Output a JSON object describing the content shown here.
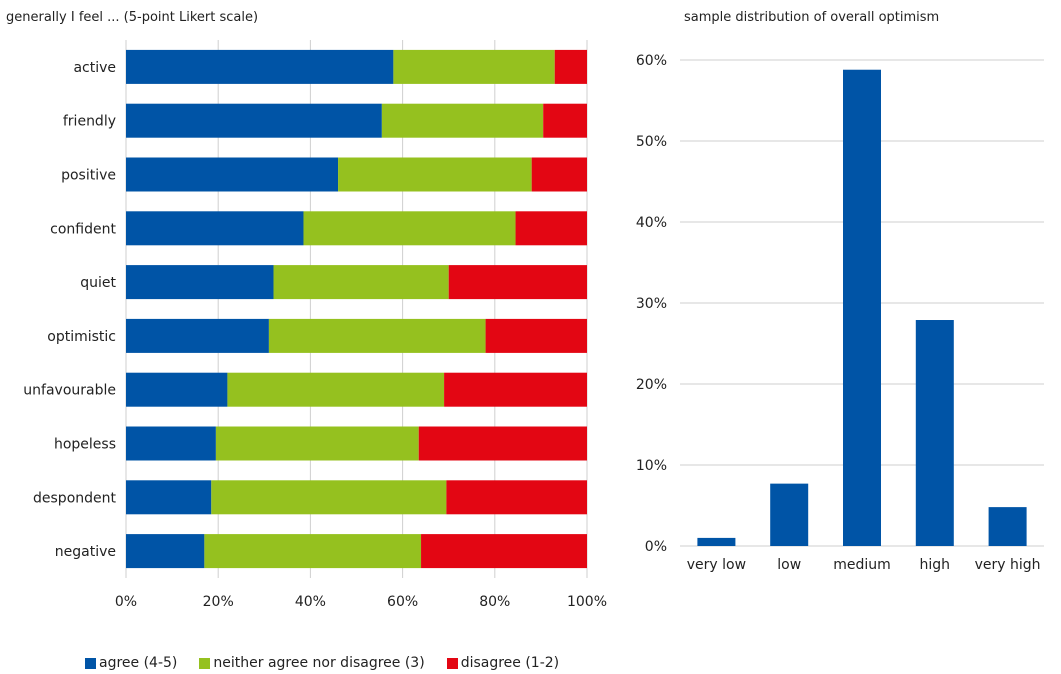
{
  "chart_data": [
    {
      "type": "bar",
      "orientation": "horizontal",
      "stacked": "percent",
      "title": "generally I feel ... (5-point Likert scale)",
      "categories": [
        "active",
        "friendly",
        "positive",
        "confident",
        "quiet",
        "optimistic",
        "unfavourable",
        "hopeless",
        "despondent",
        "negative"
      ],
      "series": [
        {
          "name": "agree (4-5)",
          "color": "#0054a6",
          "values": [
            58,
            55.5,
            46,
            38.5,
            32,
            31,
            22,
            19.5,
            18.5,
            17
          ]
        },
        {
          "name": "neither agree nor disagree (3)",
          "color": "#95c11f",
          "values": [
            35,
            35,
            42,
            46,
            38,
            47,
            47,
            44,
            51,
            47
          ]
        },
        {
          "name": "disagree (1-2)",
          "color": "#e30613",
          "values": [
            7,
            9.5,
            12,
            15.5,
            30,
            22,
            31,
            36.5,
            30.5,
            36
          ]
        }
      ],
      "xticks": [
        "0%",
        "20%",
        "40%",
        "60%",
        "80%",
        "100%"
      ],
      "xlim": [
        0,
        100
      ],
      "grid": true,
      "legend": "bottom"
    },
    {
      "type": "bar",
      "title": "sample distribution of overall optimism",
      "categories": [
        "very low",
        "low",
        "medium",
        "high",
        "very high"
      ],
      "values": [
        1,
        7.7,
        58.8,
        27.9,
        4.8
      ],
      "color": "#0054a6",
      "yticks": [
        "0%",
        "10%",
        "20%",
        "30%",
        "40%",
        "50%",
        "60%"
      ],
      "ylim": [
        0,
        60
      ],
      "grid": true
    }
  ]
}
